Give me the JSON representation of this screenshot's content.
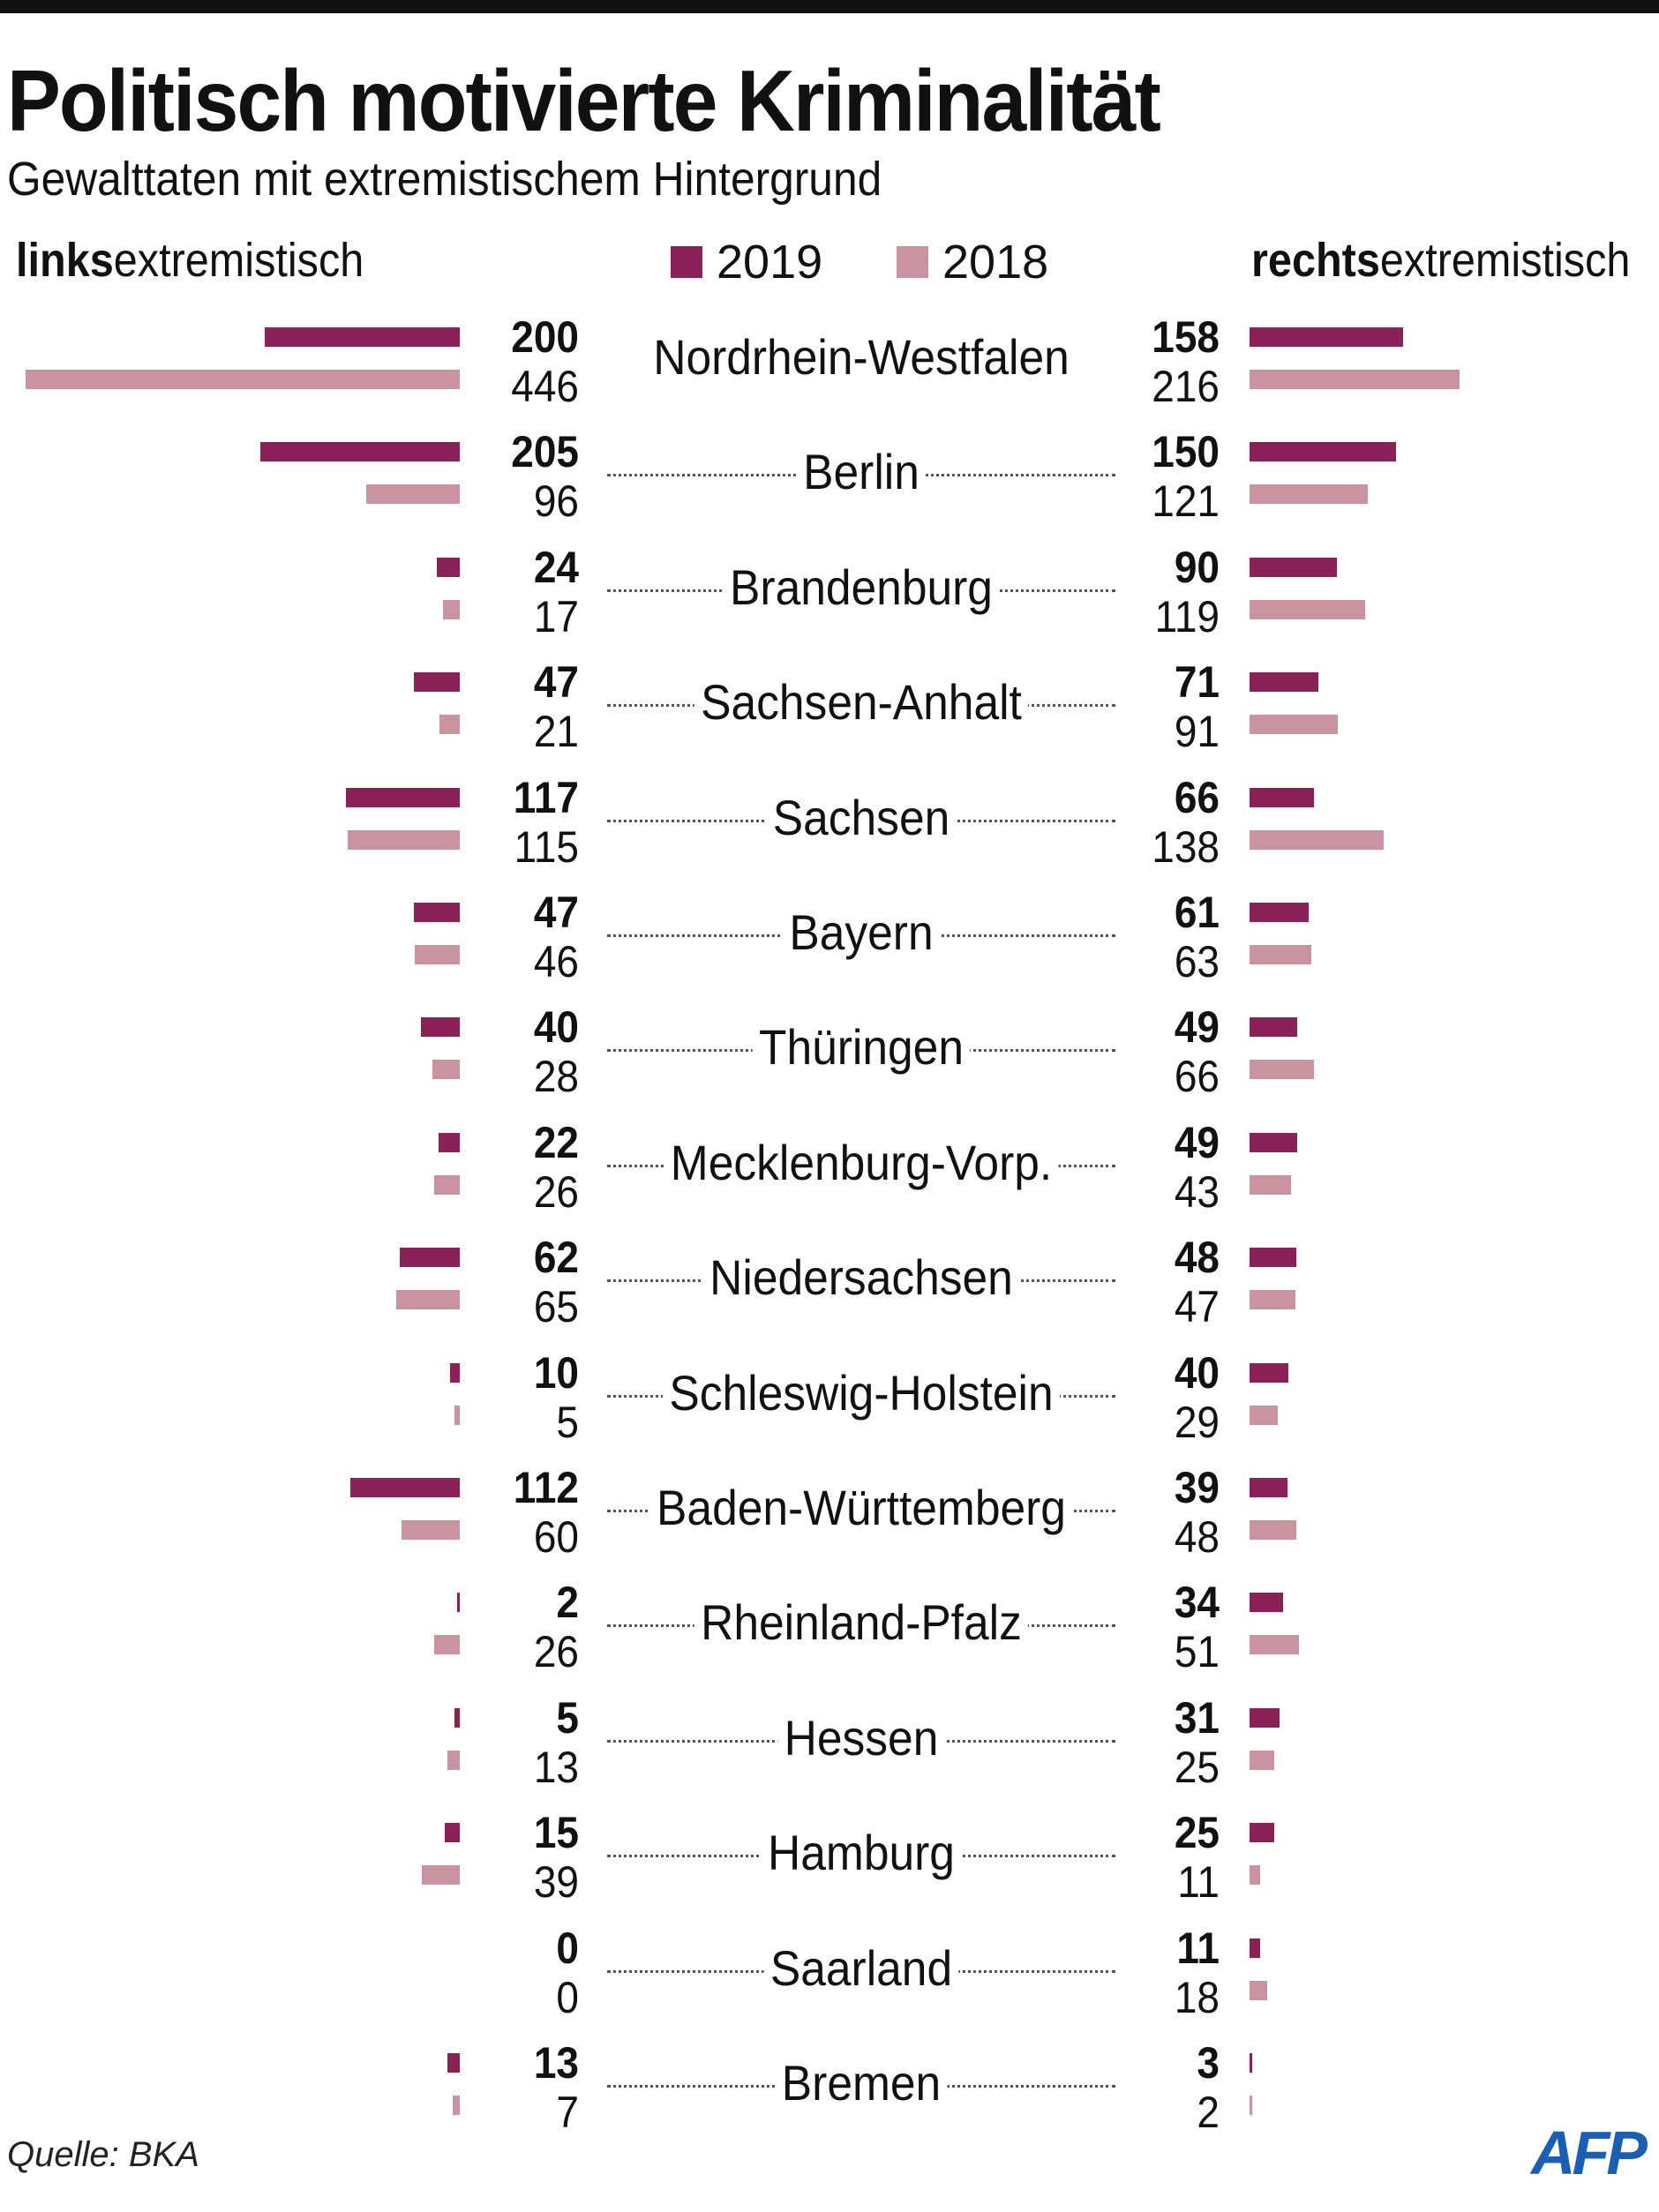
{
  "chart_data": {
    "type": "bar",
    "orientation": "horizontal-butterfly",
    "title": "Politisch motivierte Kriminalität",
    "subtitle": "Gewalttaten mit extremistischem Hintergrund",
    "left_label_bold": "links",
    "left_label_rest": "extremistisch",
    "right_label_bold": "rechts",
    "right_label_rest": "extremistisch",
    "legend": [
      {
        "name": "2019",
        "color": "#8b2257"
      },
      {
        "name": "2018",
        "color": "#c9939f"
      }
    ],
    "legend_placement": "top-center",
    "grid": false,
    "categories": [
      "Nordrhein-Westfalen",
      "Berlin",
      "Brandenburg",
      "Sachsen-Anhalt",
      "Sachsen",
      "Bayern",
      "Thüringen",
      "Mecklenburg-Vorp.",
      "Niedersachsen",
      "Schleswig-Holstein",
      "Baden-Württemberg",
      "Rheinland-Pfalz",
      "Hessen",
      "Hamburg",
      "Saarland",
      "Bremen"
    ],
    "left": {
      "2019": [
        200,
        205,
        24,
        47,
        117,
        47,
        40,
        22,
        62,
        10,
        112,
        2,
        5,
        15,
        0,
        13
      ],
      "2018": [
        446,
        96,
        17,
        21,
        115,
        46,
        28,
        26,
        65,
        5,
        60,
        26,
        13,
        39,
        0,
        7
      ]
    },
    "right": {
      "2019": [
        158,
        150,
        90,
        71,
        66,
        61,
        49,
        49,
        48,
        40,
        39,
        34,
        31,
        25,
        11,
        3
      ],
      "2018": [
        216,
        121,
        119,
        91,
        138,
        63,
        66,
        43,
        47,
        29,
        48,
        51,
        25,
        11,
        18,
        2
      ]
    },
    "source": "Quelle: BKA",
    "logo": "AFP"
  }
}
